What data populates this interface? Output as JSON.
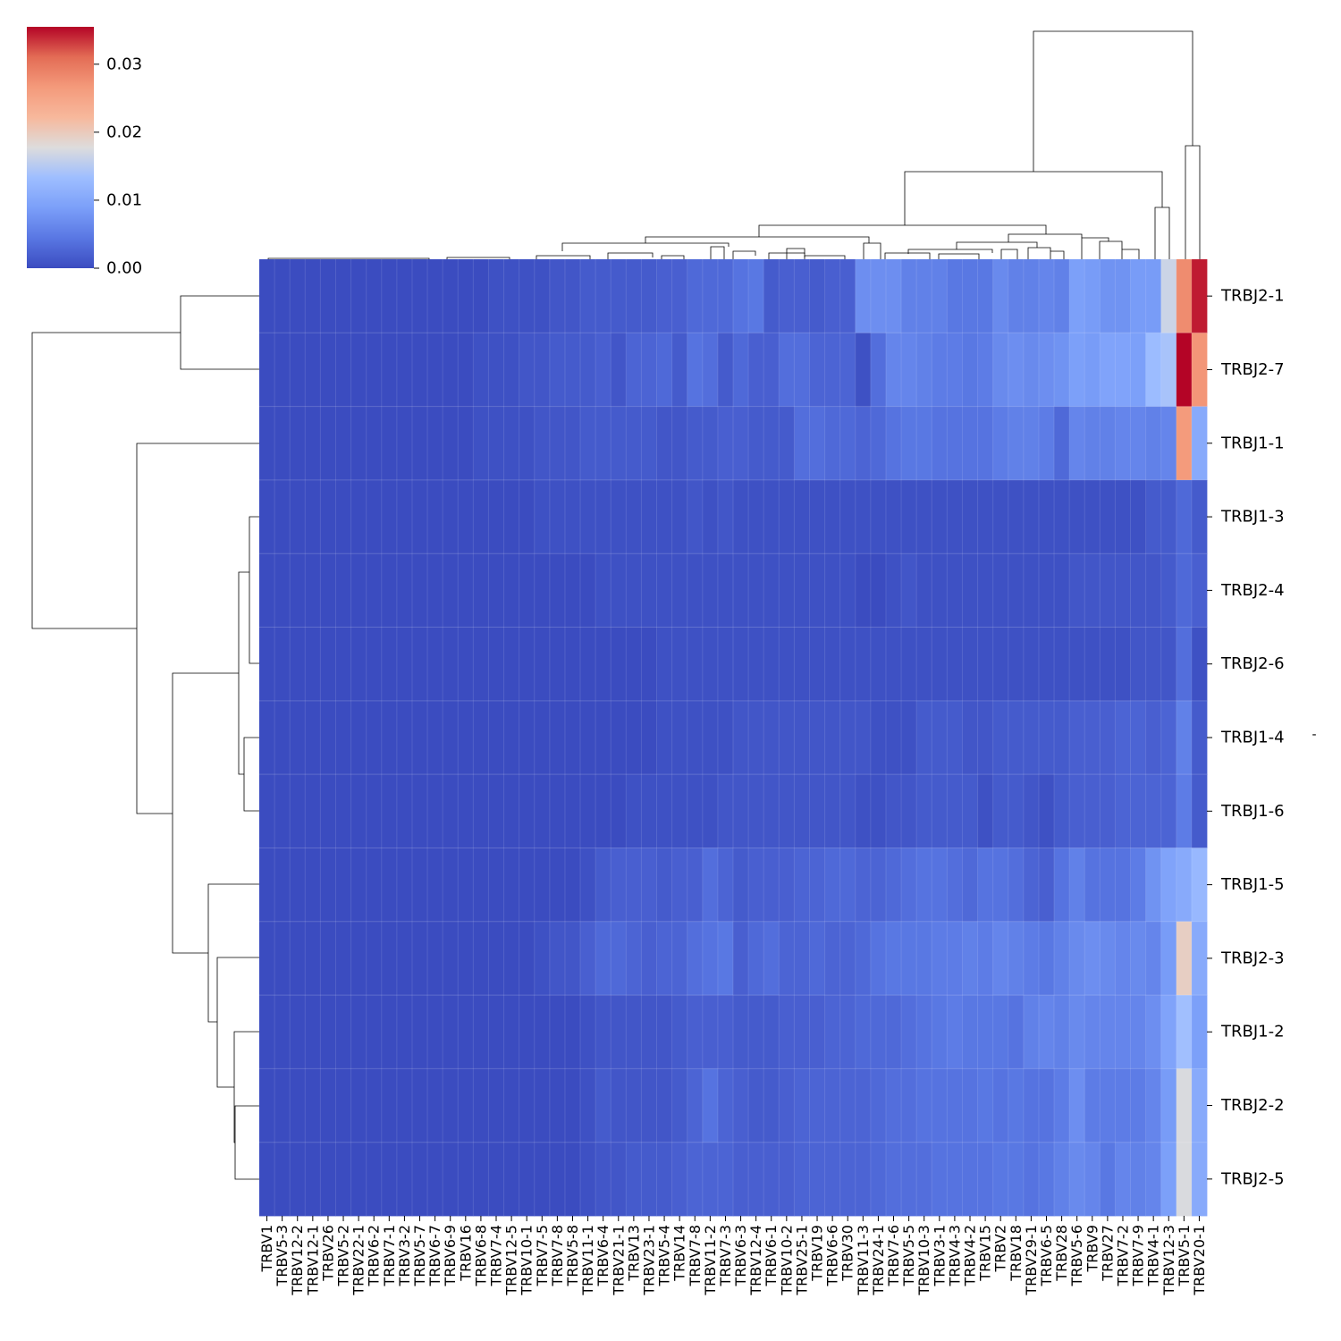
{
  "chart_data": {
    "type": "heatmap",
    "title": "",
    "xlabel": "",
    "ylabel": "",
    "right_axis_label": "-",
    "columns": [
      "TRBV1",
      "TRBV5-3",
      "TRBV12-2",
      "TRBV12-1",
      "TRBV26",
      "TRBV5-2",
      "TRBV22-1",
      "TRBV6-2",
      "TRBV7-1",
      "TRBV3-2",
      "TRBV5-7",
      "TRBV6-7",
      "TRBV6-9",
      "TRBV16",
      "TRBV6-8",
      "TRBV7-4",
      "TRBV12-5",
      "TRBV10-1",
      "TRBV7-5",
      "TRBV7-8",
      "TRBV5-8",
      "TRBV11-1",
      "TRBV6-4",
      "TRBV21-1",
      "TRBV13",
      "TRBV23-1",
      "TRBV5-4",
      "TRBV14",
      "TRBV7-8",
      "TRBV11-2",
      "TRBV7-3",
      "TRBV6-3",
      "TRBV12-4",
      "TRBV6-1",
      "TRBV10-2",
      "TRBV25-1",
      "TRBV19",
      "TRBV6-6",
      "TRBV30",
      "TRBV11-3",
      "TRBV24-1",
      "TRBV7-6",
      "TRBV5-5",
      "TRBV10-3",
      "TRBV3-1",
      "TRBV4-3",
      "TRBV4-2",
      "TRBV15",
      "TRBV2",
      "TRBV18",
      "TRBV29-1",
      "TRBV6-5",
      "TRBV28",
      "TRBV5-6",
      "TRBV9",
      "TRBV27",
      "TRBV7-2",
      "TRBV7-9",
      "TRBV4-1",
      "TRBV12-3",
      "TRBV5-1",
      "TRBV20-1"
    ],
    "rows": [
      "TRBJ2-1",
      "TRBJ2-7",
      "TRBJ1-1",
      "TRBJ1-3",
      "TRBJ2-4",
      "TRBJ2-6",
      "TRBJ1-4",
      "TRBJ1-6",
      "TRBJ1-5",
      "TRBJ2-3",
      "TRBJ1-2",
      "TRBJ2-2",
      "TRBJ2-5"
    ],
    "values": [
      [
        0,
        0,
        0,
        0,
        0,
        0,
        0,
        0,
        0,
        0,
        0,
        0,
        0,
        0,
        0,
        0.0005,
        0.0005,
        0.0005,
        0.0005,
        0.001,
        0.001,
        0.0015,
        0.0015,
        0.0015,
        0.0015,
        0.0015,
        0.002,
        0.002,
        0.003,
        0.003,
        0.003,
        0.004,
        0.0045,
        0.0015,
        0.002,
        0.002,
        0.0015,
        0.002,
        0.002,
        0.007,
        0.007,
        0.007,
        0.0055,
        0.0055,
        0.0055,
        0.0045,
        0.0045,
        0.0045,
        0.0065,
        0.0055,
        0.0055,
        0.006,
        0.0055,
        0.009,
        0.0085,
        0.0075,
        0.0075,
        0.0085,
        0.0085,
        0.0165,
        0.028,
        0.0345
      ],
      [
        0,
        0,
        0,
        0,
        0,
        0,
        0,
        0,
        0,
        0,
        0,
        0,
        0,
        0,
        0.0005,
        0.0005,
        0.0005,
        0.001,
        0.001,
        0.0015,
        0.0015,
        0.0015,
        0.002,
        0.001,
        0.0025,
        0.0025,
        0.003,
        0.0015,
        0.004,
        0.0035,
        0.0015,
        0.003,
        0.002,
        0.002,
        0.0035,
        0.0035,
        0.0025,
        0.0025,
        0.0025,
        0.0005,
        0.0035,
        0.006,
        0.006,
        0.0055,
        0.005,
        0.005,
        0.0045,
        0.005,
        0.0065,
        0.007,
        0.0065,
        0.007,
        0.0075,
        0.009,
        0.0085,
        0.0095,
        0.0095,
        0.009,
        0.013,
        0.014,
        0.0355,
        0.027
      ],
      [
        0,
        0,
        0,
        0,
        0,
        0,
        0,
        0,
        0,
        0,
        0,
        0,
        0,
        0,
        0.0005,
        0.0005,
        0.0005,
        0.0005,
        0.001,
        0.001,
        0.001,
        0.0015,
        0.0015,
        0.0015,
        0.0015,
        0.0015,
        0.001,
        0.001,
        0.0015,
        0.0015,
        0.002,
        0.002,
        0.0015,
        0.0015,
        0.0015,
        0.0035,
        0.0035,
        0.003,
        0.003,
        0.0025,
        0.003,
        0.004,
        0.0045,
        0.0045,
        0.004,
        0.004,
        0.004,
        0.004,
        0.005,
        0.0055,
        0.0055,
        0.005,
        0.003,
        0.006,
        0.0055,
        0.0055,
        0.006,
        0.006,
        0.0055,
        0.006,
        0.0265,
        0.0105
      ],
      [
        0,
        0,
        0,
        0,
        0,
        0,
        0,
        0,
        0,
        0,
        0,
        0,
        0,
        0,
        0,
        0,
        0,
        0,
        0.0005,
        0.0005,
        0.0005,
        0.0005,
        0.0005,
        0.0005,
        0.0005,
        0.0005,
        0.0005,
        0.0005,
        0.001,
        0.0005,
        0.001,
        0.0005,
        0.0005,
        0.0005,
        0.0005,
        0.0005,
        0.0005,
        0.0005,
        0.0005,
        0.0005,
        0.0005,
        0.0005,
        0.0005,
        0.0005,
        0.0005,
        0.0005,
        0.0005,
        0.0005,
        0.0005,
        0.0005,
        0.0005,
        0.0005,
        0.0005,
        0.0005,
        0.0005,
        0.0005,
        0.0005,
        0.0005,
        0.0015,
        0.0015,
        0.003,
        0.0015
      ],
      [
        0,
        0,
        0,
        0,
        0,
        0,
        0,
        0,
        0,
        0,
        0,
        0,
        0,
        0,
        0,
        0,
        0,
        0,
        0,
        0,
        0,
        0,
        0.0005,
        0.0005,
        0.0005,
        0.0005,
        0.0005,
        0.0005,
        0.0005,
        0.0005,
        0.0005,
        0.0005,
        0.0005,
        0.0005,
        0.0005,
        0.0005,
        0.0005,
        0.0005,
        0.0005,
        0,
        0,
        0.0005,
        0.001,
        0.0005,
        0.0005,
        0.0005,
        0.0005,
        0.0005,
        0.0005,
        0.0005,
        0.0005,
        0.0005,
        0.0005,
        0.001,
        0.001,
        0.001,
        0.001,
        0.001,
        0.001,
        0.0015,
        0.003,
        0.002
      ],
      [
        0,
        0,
        0,
        0,
        0,
        0,
        0,
        0,
        0,
        0,
        0,
        0,
        0,
        0,
        0,
        0,
        0,
        0,
        0,
        0,
        0,
        0,
        0,
        0,
        0,
        0,
        0.0005,
        0.0005,
        0.0005,
        0.0005,
        0.0005,
        0.0005,
        0.0005,
        0.0005,
        0.0005,
        0.0005,
        0.0005,
        0.0005,
        0.0005,
        0.0005,
        0.0005,
        0.0005,
        0.0005,
        0.0005,
        0.0005,
        0.0005,
        0.0005,
        0.0005,
        0.0005,
        0.0005,
        0.0005,
        0.0005,
        0.0005,
        0.0005,
        0.0005,
        0.0005,
        0.0005,
        0.001,
        0.001,
        0.001,
        0.0035,
        0.0005
      ],
      [
        0,
        0,
        0,
        0,
        0,
        0,
        0,
        0,
        0,
        0,
        0,
        0,
        0,
        0,
        0,
        0,
        0,
        0,
        0,
        0,
        0,
        0,
        0,
        0,
        0,
        0,
        0.0005,
        0.0005,
        0.0005,
        0.0005,
        0.0005,
        0.001,
        0.001,
        0.001,
        0.001,
        0.001,
        0.001,
        0.001,
        0.001,
        0.001,
        0.0005,
        0.0005,
        0.0005,
        0.0015,
        0.0015,
        0.0015,
        0.001,
        0.001,
        0.0015,
        0.0015,
        0.0015,
        0.0015,
        0.0015,
        0.002,
        0.002,
        0.002,
        0.0025,
        0.0025,
        0.002,
        0.0025,
        0.0055,
        0.0015
      ],
      [
        0,
        0,
        0,
        0,
        0,
        0,
        0,
        0,
        0,
        0,
        0,
        0,
        0,
        0,
        0,
        0,
        0,
        0,
        0,
        0,
        0,
        0,
        0,
        0,
        0.0005,
        0.0005,
        0.0005,
        0.0005,
        0.0005,
        0.0005,
        0.001,
        0.001,
        0.001,
        0.001,
        0.001,
        0.001,
        0.001,
        0.001,
        0.001,
        0.0005,
        0.0005,
        0.001,
        0.001,
        0.0015,
        0.0015,
        0.0015,
        0.0015,
        0.0005,
        0.0015,
        0.0015,
        0.001,
        0.0005,
        0.0015,
        0.002,
        0.002,
        0.002,
        0.0025,
        0.0025,
        0.0025,
        0.0025,
        0.005,
        0.0015
      ],
      [
        0,
        0,
        0,
        0,
        0,
        0,
        0,
        0,
        0,
        0,
        0,
        0,
        0,
        0,
        0,
        0,
        0,
        0,
        0,
        0,
        0,
        0.0005,
        0.0015,
        0.002,
        0.002,
        0.002,
        0.0015,
        0.002,
        0.002,
        0.0035,
        0.0025,
        0.0015,
        0.002,
        0.002,
        0.002,
        0.0025,
        0.0025,
        0.003,
        0.003,
        0.0025,
        0.0025,
        0.003,
        0.0035,
        0.004,
        0.004,
        0.0035,
        0.003,
        0.004,
        0.004,
        0.0035,
        0.0025,
        0.002,
        0.004,
        0.0055,
        0.004,
        0.004,
        0.004,
        0.005,
        0.0075,
        0.0095,
        0.0105,
        0.0125
      ],
      [
        0,
        0,
        0,
        0,
        0,
        0,
        0,
        0,
        0,
        0,
        0,
        0,
        0,
        0,
        0,
        0,
        0,
        0,
        0.0005,
        0.001,
        0.001,
        0.002,
        0.003,
        0.003,
        0.0025,
        0.002,
        0.0025,
        0.0025,
        0.0035,
        0.004,
        0.0045,
        0.002,
        0.003,
        0.0035,
        0.0025,
        0.0025,
        0.003,
        0.0025,
        0.0025,
        0.003,
        0.004,
        0.0045,
        0.0045,
        0.0045,
        0.005,
        0.005,
        0.0055,
        0.005,
        0.006,
        0.0055,
        0.005,
        0.0045,
        0.0055,
        0.0065,
        0.007,
        0.0065,
        0.006,
        0.0065,
        0.006,
        0.0085,
        0.0195,
        0.0105
      ],
      [
        0,
        0,
        0,
        0,
        0,
        0,
        0,
        0,
        0,
        0,
        0,
        0,
        0,
        0,
        0,
        0,
        0,
        0,
        0,
        0,
        0,
        0.0005,
        0.001,
        0.001,
        0.001,
        0.001,
        0.001,
        0.0015,
        0.002,
        0.002,
        0.002,
        0.0015,
        0.0015,
        0.0015,
        0.002,
        0.002,
        0.002,
        0.0025,
        0.0025,
        0.003,
        0.003,
        0.003,
        0.0035,
        0.004,
        0.0045,
        0.005,
        0.0045,
        0.0045,
        0.0045,
        0.004,
        0.0055,
        0.006,
        0.0055,
        0.0065,
        0.006,
        0.006,
        0.006,
        0.006,
        0.007,
        0.0095,
        0.0135,
        0.009
      ],
      [
        0,
        0,
        0,
        0,
        0,
        0,
        0,
        0,
        0,
        0,
        0,
        0,
        0,
        0,
        0,
        0,
        0,
        0,
        0,
        0,
        0,
        0.0005,
        0.0015,
        0.001,
        0.001,
        0.001,
        0.001,
        0.0015,
        0.0025,
        0.004,
        0.0025,
        0.002,
        0.0015,
        0.0015,
        0.002,
        0.0025,
        0.0025,
        0.0025,
        0.0025,
        0.0025,
        0.003,
        0.0035,
        0.0035,
        0.004,
        0.004,
        0.004,
        0.004,
        0.0045,
        0.004,
        0.0045,
        0.004,
        0.004,
        0.005,
        0.007,
        0.005,
        0.005,
        0.005,
        0.005,
        0.006,
        0.0085,
        0.0175,
        0.0105
      ],
      [
        0,
        0,
        0,
        0,
        0,
        0,
        0,
        0,
        0,
        0,
        0,
        0,
        0,
        0,
        0,
        0,
        0,
        0,
        0,
        0,
        0,
        0.0005,
        0.001,
        0.001,
        0.0015,
        0.0015,
        0.0015,
        0.002,
        0.0025,
        0.0025,
        0.0025,
        0.002,
        0.002,
        0.002,
        0.002,
        0.0025,
        0.0025,
        0.0025,
        0.0025,
        0.0025,
        0.003,
        0.0035,
        0.0035,
        0.0035,
        0.004,
        0.004,
        0.004,
        0.004,
        0.0045,
        0.0045,
        0.004,
        0.0045,
        0.0055,
        0.0065,
        0.006,
        0.0045,
        0.006,
        0.0055,
        0.006,
        0.009,
        0.0175,
        0.0105
      ]
    ],
    "colorbar": {
      "colormap": "coolwarm",
      "vmin": 0,
      "vmax": 0.0355,
      "ticks": [
        0,
        0.01,
        0.02,
        0.03
      ],
      "tick_labels": [
        "0.00",
        "0.01",
        "0.02",
        "0.03"
      ]
    },
    "grid": true,
    "legend": "colorbar top-left"
  }
}
